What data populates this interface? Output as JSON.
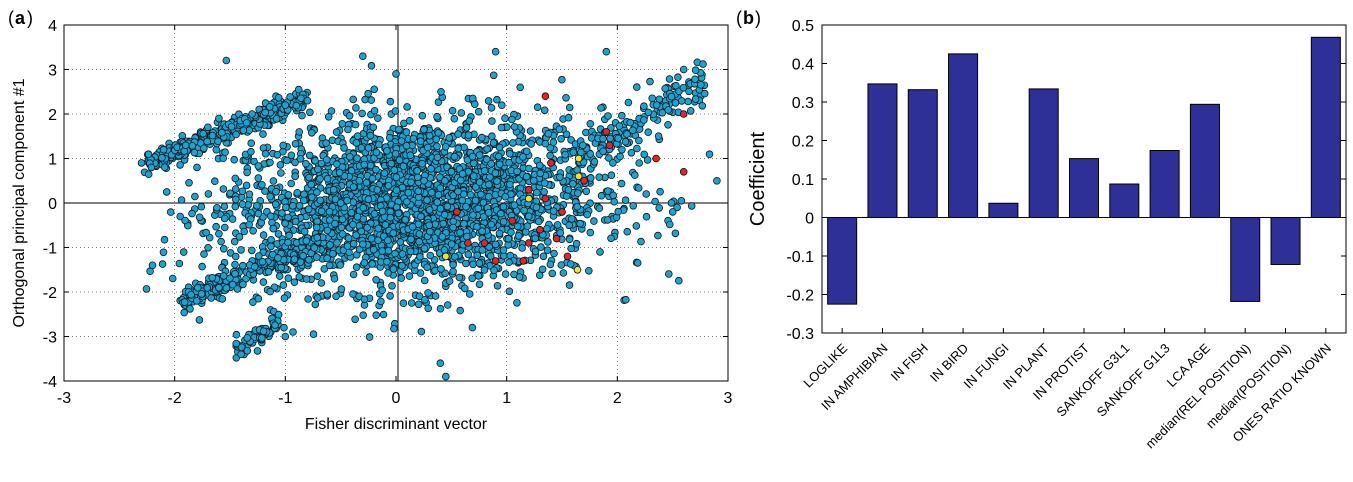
{
  "panels": {
    "a_label": "a",
    "b_label": "b"
  },
  "chart_data": [
    {
      "type": "scatter",
      "panel": "a",
      "xlabel": "Fisher discriminant vector",
      "ylabel": "Orthogonal principal component #1",
      "xlim": [
        -3,
        3
      ],
      "ylim": [
        -4,
        4
      ],
      "xticks": [
        -3,
        -2,
        -1,
        0,
        1,
        2,
        3
      ],
      "yticks": [
        4,
        3,
        2,
        1,
        0,
        -1,
        -2,
        -3,
        -4
      ],
      "grid": "dotted",
      "reference_lines": [
        0,
        0
      ],
      "point_colors": [
        "#1ea3cf",
        "#e8202a",
        "#f2e22a"
      ],
      "series": [
        {
          "color": "#1ea3cf",
          "approx_count": 3000,
          "x_range": [
            -2.3,
            2.9
          ],
          "y_range": [
            -3.9,
            3.5
          ],
          "points": [
            [
              -2.3,
              0.9
            ],
            [
              -2.1,
              1.2
            ],
            [
              -1.9,
              1.3
            ],
            [
              -1.7,
              1.7
            ],
            [
              -1.6,
              1.9
            ],
            [
              -1.3,
              2.0
            ],
            [
              -1.0,
              2.2
            ],
            [
              -0.8,
              2.3
            ],
            [
              -0.3,
              3.3
            ],
            [
              0.0,
              2.9
            ],
            [
              0.9,
              3.4
            ],
            [
              1.9,
              3.4
            ],
            [
              2.6,
              3.0
            ],
            [
              2.9,
              0.5
            ],
            [
              -1.4,
              -3.4
            ],
            [
              -1.0,
              -3.0
            ],
            [
              0.4,
              -3.6
            ],
            [
              0.45,
              -3.9
            ],
            [
              -1.8,
              -2.2
            ],
            [
              -1.6,
              -1.9
            ],
            [
              -2.2,
              -1.4
            ],
            [
              2.5,
              -0.2
            ],
            [
              -0.5,
              0.0
            ],
            [
              0.3,
              -0.5
            ],
            [
              1.2,
              -0.3
            ]
          ]
        },
        {
          "color": "#e8202a",
          "points": [
            [
              1.35,
              2.4
            ],
            [
              1.9,
              1.6
            ],
            [
              1.93,
              1.3
            ],
            [
              2.6,
              2.0
            ],
            [
              2.6,
              0.7
            ],
            [
              1.4,
              0.9
            ],
            [
              1.2,
              0.3
            ],
            [
              1.35,
              0.1
            ],
            [
              1.5,
              -0.2
            ],
            [
              1.3,
              -0.6
            ],
            [
              1.55,
              -1.2
            ],
            [
              1.15,
              -1.3
            ],
            [
              0.9,
              -1.3
            ],
            [
              1.2,
              -0.9
            ],
            [
              0.8,
              -0.9
            ],
            [
              0.65,
              -0.9
            ],
            [
              2.35,
              1.0
            ],
            [
              1.05,
              -0.4
            ],
            [
              1.7,
              0.5
            ],
            [
              1.45,
              -0.8
            ],
            [
              0.55,
              -0.2
            ]
          ]
        },
        {
          "color": "#f2e22a",
          "points": [
            [
              1.65,
              1.0
            ],
            [
              1.65,
              0.6
            ],
            [
              1.2,
              0.1
            ],
            [
              0.45,
              -1.2
            ],
            [
              1.64,
              -1.5
            ]
          ]
        }
      ]
    },
    {
      "type": "bar",
      "panel": "b",
      "xlabel": "",
      "ylabel": "Coefficient",
      "ylim": [
        -0.3,
        0.5
      ],
      "yticks": [
        0.5,
        0.4,
        0.3,
        0.2,
        0.1,
        0,
        -0.1,
        -0.2,
        -0.3
      ],
      "categories": [
        "LOGLIKE",
        "IN AMPHIBIAN",
        "IN FISH",
        "IN BIRD",
        "IN FUNGI",
        "IN PLANT",
        "IN PROTIST",
        "SANKOFF G3L1",
        "SANKOFF G1L3",
        "LCA AGE",
        "median(REL POSITION)",
        "median(POSITION)",
        "ONES RATIO KNOWN"
      ],
      "values": [
        -0.225,
        0.347,
        0.332,
        0.425,
        0.037,
        0.334,
        0.153,
        0.087,
        0.174,
        0.294,
        -0.218,
        -0.122,
        0.468
      ],
      "bar_color": "#2f2f98"
    }
  ]
}
